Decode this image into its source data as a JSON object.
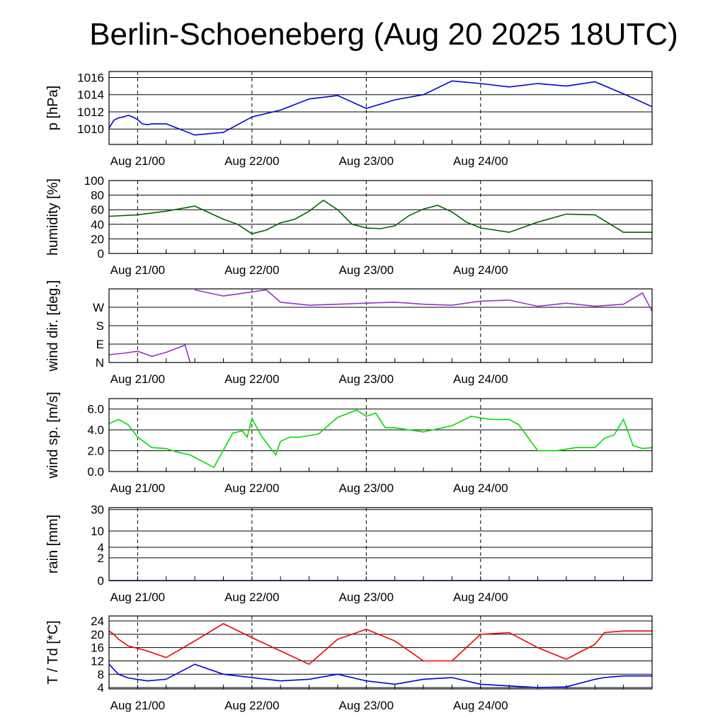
{
  "title": "Berlin-Schoeneberg (Aug 20 2025 18UTC)",
  "x_tick_labels": [
    "Aug 21/00",
    "Aug 22/00",
    "Aug 23/00",
    "Aug 24/00"
  ],
  "chart_data": [
    {
      "type": "line",
      "ylabel": "p [hPa]",
      "y_ticks": [
        1010,
        1012,
        1014,
        1016
      ],
      "y_tick_labels": [
        "1010",
        "1012",
        "1014",
        "1016"
      ],
      "ylim": [
        1008.2,
        1016.7
      ],
      "x_hours": [
        0,
        1,
        2,
        3,
        4,
        5,
        6,
        7,
        8,
        9,
        12,
        18,
        24,
        30,
        36,
        42,
        48,
        54,
        60,
        66,
        72,
        78,
        84,
        90,
        96,
        102,
        108,
        114
      ],
      "series": [
        {
          "color": "#0000dd",
          "values": [
            1010.1,
            1011.0,
            1011.3,
            1011.4,
            1011.6,
            1011.4,
            1011.1,
            1010.6,
            1010.5,
            1010.6,
            1010.6,
            1009.3,
            1009.6,
            1011.4,
            1012.2,
            1013.5,
            1013.9,
            1012.4,
            1013.4,
            1014.0,
            1015.6,
            1015.3,
            1014.9,
            1015.3,
            1015.0,
            1015.5,
            1014.1,
            1012.6
          ]
        }
      ]
    },
    {
      "type": "line",
      "ylabel": "humidity [%]",
      "y_ticks": [
        0,
        20,
        40,
        60,
        80,
        100
      ],
      "y_tick_labels": [
        "0",
        "20",
        "40",
        "60",
        "80",
        "100"
      ],
      "ylim": [
        0,
        100
      ],
      "x_hours": [
        0,
        6,
        12,
        18,
        24,
        27,
        30,
        33,
        36,
        39,
        42,
        45,
        48,
        51,
        54,
        57,
        60,
        63,
        66,
        69,
        72,
        75,
        78,
        84,
        90,
        96,
        102,
        108,
        114
      ],
      "series": [
        {
          "color": "#006400",
          "values": [
            51,
            53,
            58,
            65,
            47,
            40,
            27,
            32,
            42,
            47,
            58,
            73,
            60,
            40,
            35,
            34,
            38,
            52,
            61,
            66,
            57,
            43,
            35,
            29,
            43,
            54,
            53,
            29,
            29
          ]
        }
      ]
    },
    {
      "type": "line",
      "ylabel": "wind dir. [deg.]",
      "y_ticks": [
        0,
        90,
        180,
        270
      ],
      "y_tick_labels": [
        "N",
        "E",
        "S",
        "W"
      ],
      "ylim": [
        0,
        360
      ],
      "x_hours": [
        0,
        3,
        6,
        9,
        12,
        16,
        17,
        18,
        24,
        30,
        33,
        36,
        42,
        48,
        54,
        60,
        66,
        72,
        78,
        84,
        90,
        96,
        102,
        108,
        112,
        114
      ],
      "series": [
        {
          "color": "#9932cc",
          "values": [
            38,
            45,
            55,
            30,
            50,
            85,
            0,
            355,
            325,
            345,
            355,
            295,
            280,
            285,
            290,
            295,
            285,
            280,
            300,
            305,
            275,
            290,
            275,
            285,
            340,
            250
          ]
        }
      ]
    },
    {
      "type": "line",
      "ylabel": "wind sp. [m/s]",
      "y_ticks": [
        0,
        2,
        4,
        6
      ],
      "y_tick_labels": [
        "0.0",
        "2.0",
        "4.0",
        "6.0"
      ],
      "ylim": [
        0,
        7
      ],
      "x_hours": [
        0,
        2,
        4,
        6,
        9,
        12,
        14,
        17,
        22,
        26,
        28,
        29,
        30,
        32,
        35,
        36,
        38,
        40,
        44,
        48,
        52,
        54,
        56,
        58,
        60,
        66,
        72,
        76,
        80,
        84,
        86,
        90,
        94,
        98,
        102,
        104,
        106,
        108,
        110,
        112,
        114
      ],
      "series": [
        {
          "color": "#00dd00",
          "values": [
            4.6,
            5.0,
            4.5,
            3.3,
            2.3,
            2.2,
            1.9,
            1.6,
            0.4,
            3.7,
            3.9,
            3.3,
            5.1,
            3.4,
            1.6,
            2.9,
            3.3,
            3.3,
            3.6,
            5.2,
            5.9,
            5.3,
            5.6,
            4.2,
            4.2,
            3.8,
            4.4,
            5.3,
            5.0,
            5.0,
            4.5,
            2.0,
            2.0,
            2.3,
            2.3,
            3.2,
            3.5,
            5.0,
            2.5,
            2.2,
            2.3
          ]
        }
      ]
    },
    {
      "type": "line",
      "ylabel": "rain [mm]",
      "y_ticks": [
        0,
        2,
        4,
        10,
        30
      ],
      "y_tick_labels": [
        "0",
        "2",
        "4",
        "10",
        "30"
      ],
      "ylim": [
        0,
        33
      ],
      "y_scale": "log",
      "x_hours": [
        0,
        114
      ],
      "series": [
        {
          "color": "#0000dd",
          "values": [
            0,
            0
          ]
        }
      ]
    },
    {
      "type": "line",
      "ylabel": "T / Td [*C]",
      "y_ticks": [
        4,
        8,
        12,
        16,
        20,
        24
      ],
      "y_tick_labels": [
        "4",
        "8",
        "12",
        "16",
        "20",
        "24"
      ],
      "ylim": [
        3.6,
        25.5
      ],
      "x_hours": [
        0,
        1,
        2,
        4,
        8,
        12,
        18,
        24,
        30,
        36,
        42,
        48,
        54,
        60,
        66,
        72,
        78,
        84,
        90,
        96,
        102,
        104,
        108,
        114
      ],
      "series": [
        {
          "color": "#ee0000",
          "values": [
            21.0,
            20.0,
            18.5,
            16.5,
            15.0,
            13.0,
            18.0,
            23.2,
            19.0,
            15.0,
            11.0,
            18.5,
            21.5,
            18.0,
            12.0,
            12.0,
            20.0,
            20.5,
            16.0,
            12.5,
            17.0,
            20.5,
            21.0,
            21.0
          ]
        },
        {
          "color": "#0000dd",
          "values": [
            11.0,
            9.5,
            8.0,
            6.9,
            6.0,
            6.5,
            11.0,
            8.0,
            7.0,
            6.0,
            6.5,
            8.0,
            6.0,
            5.0,
            6.5,
            7.0,
            5.0,
            4.5,
            4.0,
            4.2,
            6.5,
            7.0,
            7.5,
            7.5
          ]
        }
      ]
    }
  ]
}
